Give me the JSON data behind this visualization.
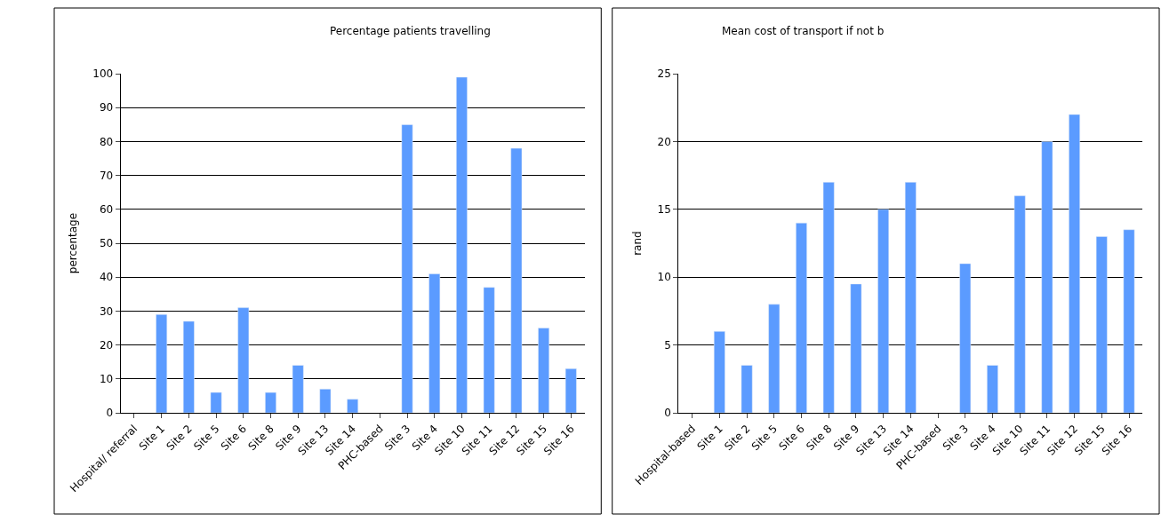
{
  "chart_data": [
    {
      "type": "bar",
      "title": "Percentage patients travelling",
      "ylabel": "percentage",
      "categories": [
        "Hospital/ referral",
        "Site 1",
        "Site 2",
        "Site 5",
        "Site 6",
        "Site 8",
        "Site 9",
        "Site 13",
        "Site 14",
        "PHC-based",
        "Site 3",
        "Site 4",
        "Site 10",
        "Site 11",
        "Site 12",
        "Site 15",
        "Site 16"
      ],
      "values": [
        null,
        29,
        27,
        6,
        31,
        6,
        14,
        7,
        4,
        null,
        85,
        41,
        99,
        37,
        78,
        25,
        13
      ],
      "color": "#5b9bff",
      "ylim": [
        0,
        100
      ],
      "yticks": [
        0,
        10,
        20,
        30,
        40,
        50,
        60,
        70,
        80,
        90,
        100
      ],
      "grid": "y"
    },
    {
      "type": "bar",
      "title": "Mean cost of transport if not b",
      "ylabel": "rand",
      "categories": [
        "Hospital-based",
        "Site 1",
        "Site 2",
        "Site 5",
        "Site 6",
        "Site 8",
        "Site 9",
        "Site 13",
        "Site 14",
        "PHC-based",
        "Site 3",
        "Site 4",
        "Site 10",
        "Site 11",
        "Site 12",
        "Site 15",
        "Site 16"
      ],
      "values": [
        null,
        6,
        3.5,
        8,
        14,
        17,
        9.5,
        15,
        17,
        null,
        11,
        3.5,
        16,
        20,
        22,
        13,
        13.5
      ],
      "color": "#5b9bff",
      "ylim": [
        0,
        25
      ],
      "yticks": [
        0,
        5,
        10,
        15,
        20,
        25
      ],
      "grid": "y"
    }
  ]
}
